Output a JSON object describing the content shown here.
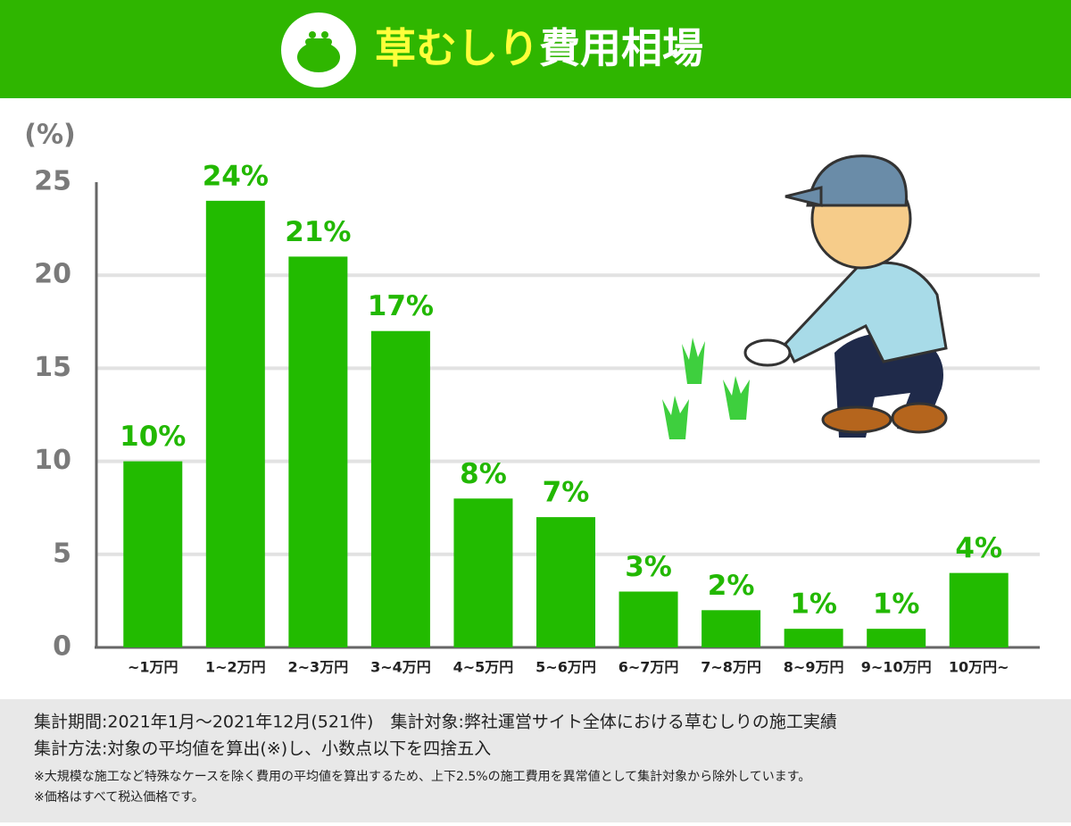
{
  "chart_data": {
    "type": "bar",
    "title": [
      "草むしり",
      "費用相場"
    ],
    "y_label": "(%)",
    "categories": [
      "~1万円",
      "1~2万円",
      "2~3万円",
      "3~4万円",
      "4~5万円",
      "5~6万円",
      "6~7万円",
      "7~8万円",
      "8~9万円",
      "9~10万円",
      "10万円~"
    ],
    "values": [
      10,
      24,
      21,
      17,
      8,
      7,
      3,
      2,
      1,
      1,
      4
    ],
    "value_labels": [
      "10%",
      "24%",
      "21%",
      "17%",
      "8%",
      "7%",
      "3%",
      "2%",
      "1%",
      "1%",
      "4%"
    ],
    "color": "#22bb00",
    "ylim": [
      0,
      25
    ],
    "yticks": [
      0,
      5,
      10,
      15,
      20,
      25
    ],
    "grid": true
  },
  "notes": [
    "集計期間:2021年1月～2021年12月(521件)　集計対象:弊社運営サイト全体における草むしりの施工実績",
    "集計方法:対象の平均値を算出(※)し、小数点以下を四捨五入",
    "※大規模な施工など特殊なケースを除く費用の平均値を算出するため、上下2.5%の施工費用を異常値として集計対象から除外しています。",
    "※価格はすべて税込価格です。"
  ]
}
